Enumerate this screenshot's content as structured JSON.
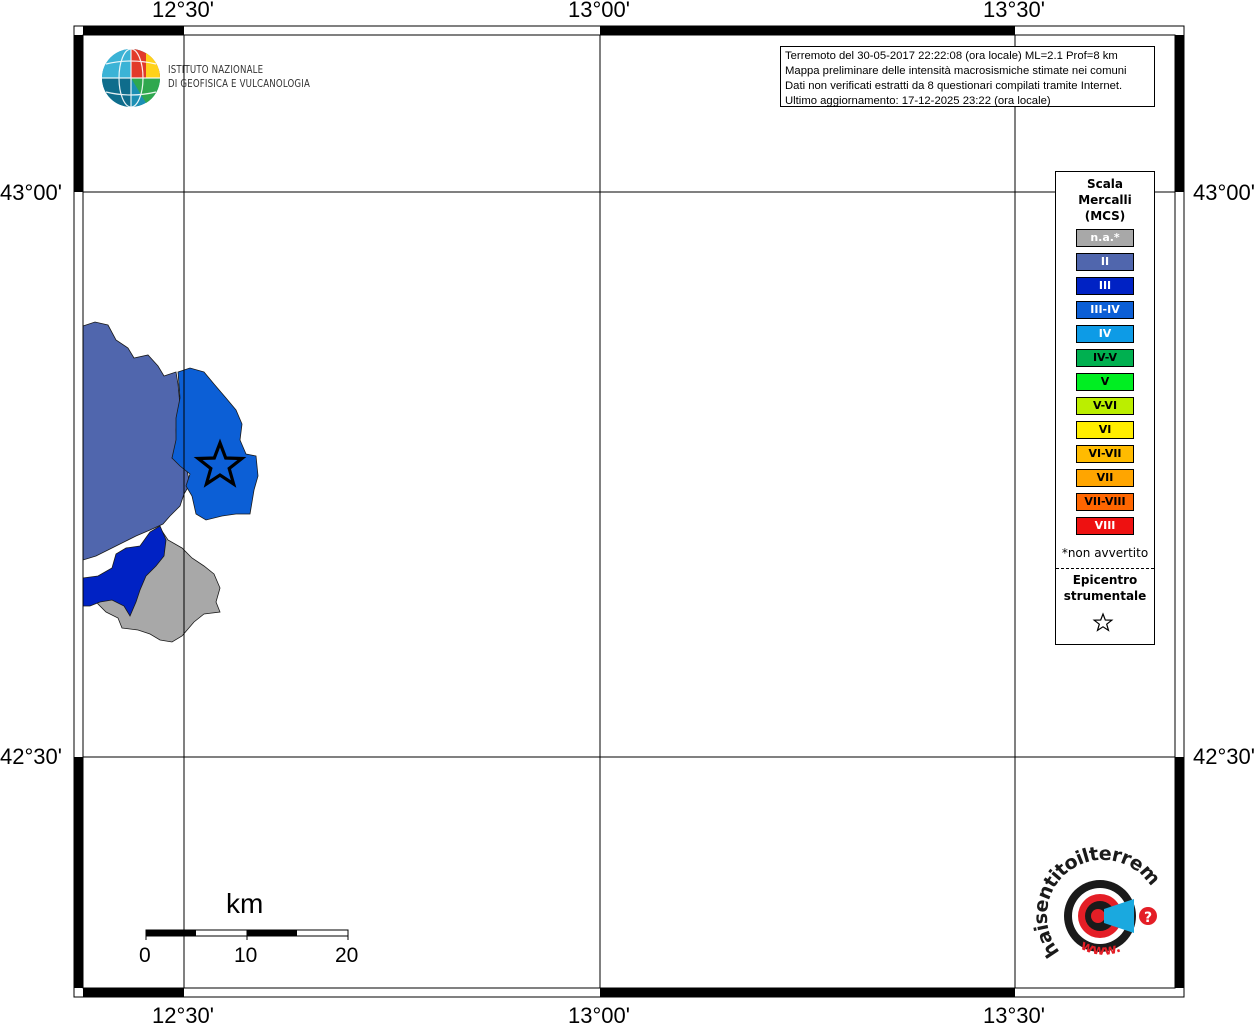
{
  "map": {
    "lon_labels": [
      "12°30'",
      "13°00'",
      "13°30'"
    ],
    "lat_labels": [
      "43°00'",
      "42°30'"
    ],
    "epicenter_symbol": "star-icon",
    "colors": {
      "intensity_II": "#5066ad",
      "intensity_III": "#0022c4",
      "intensity_III_IV": "#0c5fd6",
      "not_felt": "#a8a8a8",
      "border": "#1a1a1a"
    }
  },
  "info": {
    "lines": [
      "Terremoto del 30-05-2017 22:22:08 (ora locale) ML=2.1 Prof=8 km",
      "Mappa preliminare delle intensità macrosismiche stimate nei comuni",
      "Dati non verificati estratti da 8 questionari compilati tramite Internet.",
      "Ultimo aggiornamento: 17-12-2025 23:22 (ora locale)"
    ]
  },
  "logo": {
    "line1": "ISTITUTO NAZIONALE",
    "line2": "DI GEOFISICA E VULCANOLOGIA"
  },
  "legend": {
    "title": [
      "Scala",
      "Mercalli",
      "(MCS)"
    ],
    "items": [
      {
        "label": "n.a.*",
        "color": "#a8a8a8",
        "text_color": "#ffffff"
      },
      {
        "label": "II",
        "color": "#5066ad",
        "text_color": "#ffffff"
      },
      {
        "label": "III",
        "color": "#0022c4",
        "text_color": "#ffffff"
      },
      {
        "label": "III-IV",
        "color": "#0c5fd6",
        "text_color": "#ffffff"
      },
      {
        "label": "IV",
        "color": "#0d9be6",
        "text_color": "#ffffff"
      },
      {
        "label": "IV-V",
        "color": "#00b050",
        "text_color": "#000000"
      },
      {
        "label": "V",
        "color": "#00ee22",
        "text_color": "#000000"
      },
      {
        "label": "V-VI",
        "color": "#bbee00",
        "text_color": "#000000"
      },
      {
        "label": "VI",
        "color": "#ffee00",
        "text_color": "#000000"
      },
      {
        "label": "VI-VII",
        "color": "#ffbb00",
        "text_color": "#000000"
      },
      {
        "label": "VII",
        "color": "#ffa500",
        "text_color": "#000000"
      },
      {
        "label": "VII-VIII",
        "color": "#ff6600",
        "text_color": "#000000"
      },
      {
        "label": "VIII",
        "color": "#ee1111",
        "text_color": "#ffffff"
      }
    ],
    "note": "*non avvertito",
    "epicenter_label": [
      "Epicentro",
      "strumentale"
    ]
  },
  "scale_bar": {
    "unit": "km",
    "ticks": [
      "0",
      "10",
      "20"
    ]
  },
  "badge": {
    "text": "haisentitoilterremoto.it",
    "www": "www.",
    "question": "?"
  }
}
